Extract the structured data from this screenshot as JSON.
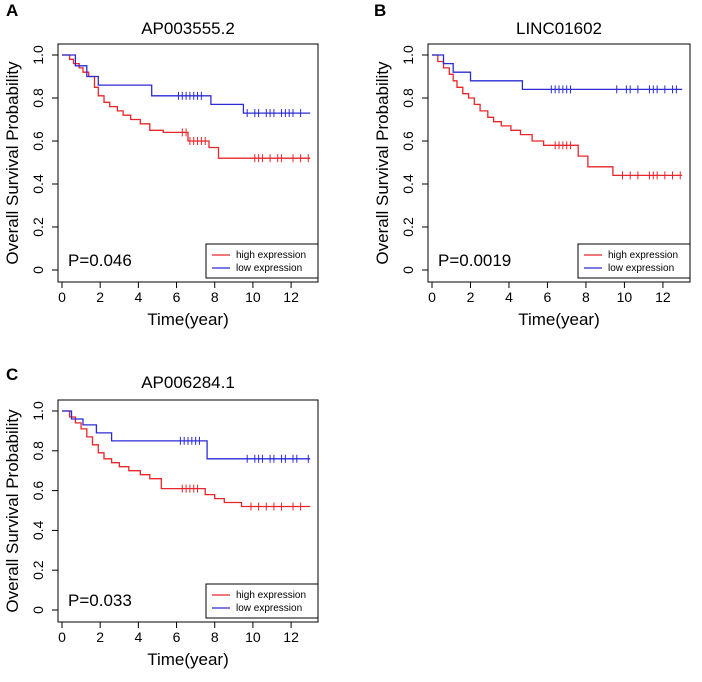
{
  "figure": {
    "panels_meta": "three Kaplan-Meier survival plots"
  },
  "colors": {
    "high": "#e8262a",
    "low": "#2b2bd6",
    "axis": "#000000"
  },
  "legend": {
    "high_label": "high expression",
    "low_label": "low expression"
  },
  "chart_data": [
    {
      "type": "line",
      "panel_letter": "A",
      "title": "AP003555.2",
      "xlabel": "Time(year)",
      "ylabel": "Overall Survival Probability",
      "xlim": [
        0,
        13.2
      ],
      "ylim": [
        0,
        1.0
      ],
      "xticks": [
        "0",
        "2",
        "4",
        "6",
        "8",
        "10",
        "12"
      ],
      "yticks": [
        "0",
        "0.2",
        "0.4",
        "0.6",
        "0.8",
        "1.0"
      ],
      "pvalue": "P=0.046",
      "legend_position": "bottom-right",
      "series": [
        {
          "name": "high expression",
          "x": [
            0,
            0.4,
            0.6,
            0.9,
            1.1,
            1.4,
            1.7,
            1.9,
            2.2,
            2.5,
            2.9,
            3.2,
            3.6,
            4.1,
            4.6,
            5.3,
            6.6,
            7.7,
            8.2,
            13.0
          ],
          "y": [
            1.0,
            0.98,
            0.96,
            0.94,
            0.92,
            0.9,
            0.85,
            0.81,
            0.78,
            0.76,
            0.74,
            0.72,
            0.7,
            0.68,
            0.65,
            0.64,
            0.6,
            0.57,
            0.52,
            0.52
          ],
          "censor_x": [
            6.3,
            6.5,
            6.7,
            6.9,
            7.1,
            7.3,
            7.5,
            10.1,
            10.3,
            10.5,
            10.9,
            11.3,
            11.5,
            12.1,
            12.5,
            12.9
          ]
        },
        {
          "name": "low expression",
          "x": [
            0,
            0.7,
            1.3,
            1.9,
            4.7,
            7.8,
            9.5,
            13.0
          ],
          "y": [
            1.0,
            0.95,
            0.9,
            0.86,
            0.81,
            0.77,
            0.73,
            0.73
          ],
          "censor_x": [
            6.1,
            6.3,
            6.5,
            6.7,
            6.9,
            7.1,
            7.3,
            9.7,
            10.1,
            10.3,
            10.7,
            10.9,
            11.1,
            11.5,
            11.7,
            11.9,
            12.1,
            12.5
          ]
        }
      ]
    },
    {
      "type": "line",
      "panel_letter": "B",
      "title": "LINC01602",
      "xlabel": "Time(year)",
      "ylabel": "Overall Survival Probability",
      "xlim": [
        0,
        13.2
      ],
      "ylim": [
        0,
        1.0
      ],
      "xticks": [
        "0",
        "2",
        "4",
        "6",
        "8",
        "10",
        "12"
      ],
      "yticks": [
        "0",
        "0.2",
        "0.4",
        "0.6",
        "0.8",
        "1.0"
      ],
      "pvalue": "P=0.0019",
      "legend_position": "bottom-right",
      "series": [
        {
          "name": "high expression",
          "x": [
            0,
            0.3,
            0.6,
            0.9,
            1.1,
            1.3,
            1.6,
            1.9,
            2.2,
            2.5,
            2.9,
            3.2,
            3.6,
            4.1,
            4.6,
            5.2,
            5.8,
            7.6,
            8.1,
            9.4,
            13.0
          ],
          "y": [
            1.0,
            0.97,
            0.94,
            0.91,
            0.88,
            0.85,
            0.82,
            0.8,
            0.77,
            0.74,
            0.71,
            0.69,
            0.67,
            0.65,
            0.63,
            0.6,
            0.58,
            0.53,
            0.48,
            0.44,
            0.44
          ],
          "censor_x": [
            6.4,
            6.6,
            6.8,
            7.0,
            7.2,
            9.9,
            10.3,
            10.7,
            11.3,
            11.5,
            11.7,
            12.1,
            12.5,
            12.9
          ]
        },
        {
          "name": "low expression",
          "x": [
            0,
            0.6,
            1.1,
            2.0,
            4.7,
            13.0
          ],
          "y": [
            1.0,
            0.96,
            0.92,
            0.88,
            0.84,
            0.84
          ],
          "censor_x": [
            6.2,
            6.4,
            6.6,
            6.8,
            7.0,
            7.2,
            9.6,
            10.1,
            10.3,
            10.7,
            11.3,
            11.5,
            11.7,
            12.1,
            12.5,
            12.7
          ]
        }
      ]
    },
    {
      "type": "line",
      "panel_letter": "C",
      "title": "AP006284.1",
      "xlabel": "Time(year)",
      "ylabel": "Overall Survival Probability",
      "xlim": [
        0,
        13.2
      ],
      "ylim": [
        0,
        1.0
      ],
      "xticks": [
        "0",
        "2",
        "4",
        "6",
        "8",
        "10",
        "12"
      ],
      "yticks": [
        "0",
        "0.2",
        "0.4",
        "0.6",
        "0.8",
        "1.0"
      ],
      "pvalue": "P=0.033",
      "legend_position": "bottom-right",
      "series": [
        {
          "name": "high expression",
          "x": [
            0,
            0.4,
            0.7,
            1.0,
            1.3,
            1.6,
            1.9,
            2.2,
            2.6,
            3.0,
            3.5,
            4.1,
            4.6,
            5.2,
            7.5,
            8.0,
            8.5,
            9.4,
            13.0
          ],
          "y": [
            1.0,
            0.97,
            0.94,
            0.91,
            0.87,
            0.83,
            0.79,
            0.76,
            0.74,
            0.72,
            0.7,
            0.68,
            0.66,
            0.61,
            0.58,
            0.56,
            0.54,
            0.52,
            0.52
          ],
          "censor_x": [
            6.3,
            6.5,
            6.7,
            6.9,
            7.1,
            9.9,
            10.3,
            10.7,
            11.1,
            11.5,
            12.1,
            12.5
          ]
        },
        {
          "name": "low expression",
          "x": [
            0,
            0.5,
            1.1,
            1.8,
            2.6,
            7.6,
            13.0
          ],
          "y": [
            1.0,
            0.96,
            0.93,
            0.89,
            0.85,
            0.76,
            0.76
          ],
          "censor_x": [
            6.2,
            6.4,
            6.6,
            6.8,
            7.0,
            7.2,
            9.7,
            10.1,
            10.3,
            10.5,
            10.9,
            11.1,
            11.5,
            11.7,
            12.1,
            12.3,
            12.9
          ]
        }
      ]
    }
  ]
}
